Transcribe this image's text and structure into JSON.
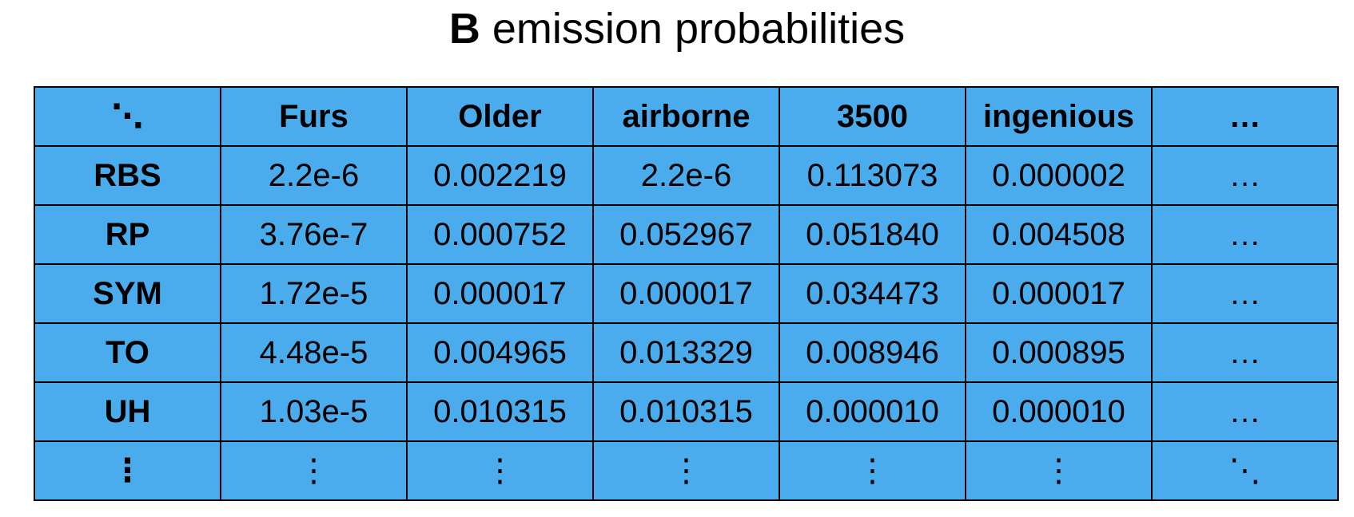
{
  "title": {
    "bold": "B",
    "text": "emission probabilities"
  },
  "table": {
    "corner": "⋱",
    "columns": [
      "Furs",
      "Older",
      "airborne",
      "3500",
      "ingenious",
      "…"
    ],
    "rows": [
      {
        "label": "RBS",
        "values": [
          "2.2e-6",
          "0.002219",
          "2.2e-6",
          "0.113073",
          "0.000002",
          "…"
        ]
      },
      {
        "label": "RP",
        "values": [
          "3.76e-7",
          "0.000752",
          "0.052967",
          "0.051840",
          "0.004508",
          "…"
        ]
      },
      {
        "label": "SYM",
        "values": [
          "1.72e-5",
          "0.000017",
          "0.000017",
          "0.034473",
          "0.000017",
          "…"
        ]
      },
      {
        "label": "TO",
        "values": [
          "4.48e-5",
          "0.004965",
          "0.013329",
          "0.008946",
          "0.000895",
          "…"
        ]
      },
      {
        "label": "UH",
        "values": [
          "1.03e-5",
          "0.010315",
          "0.010315",
          "0.000010",
          "0.000010",
          "…"
        ]
      },
      {
        "label": "⋮",
        "values": [
          "⋮",
          "⋮",
          "⋮",
          "⋮",
          "⋮",
          "⋱"
        ]
      }
    ]
  }
}
